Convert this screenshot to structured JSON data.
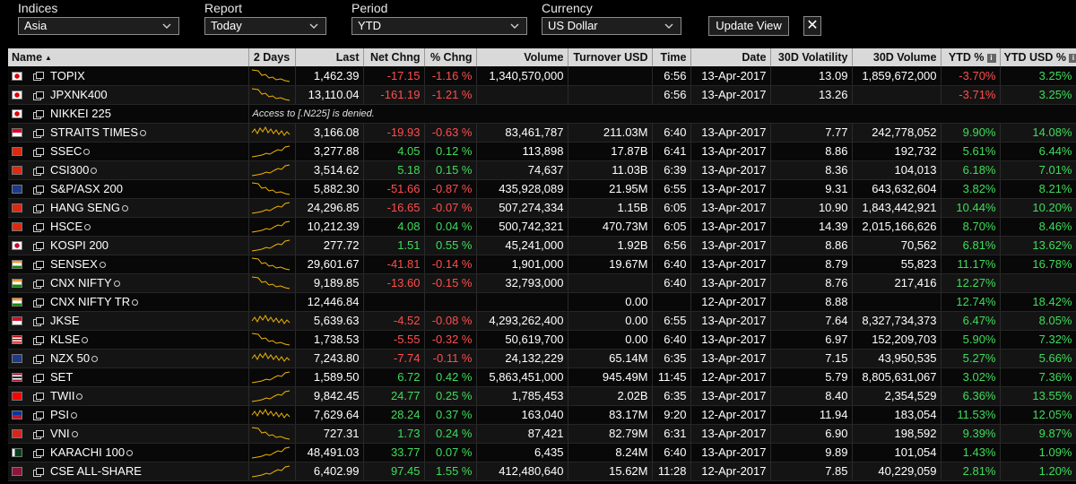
{
  "controls": {
    "indices": {
      "label": "Indices",
      "value": "Asia"
    },
    "report": {
      "label": "Report",
      "value": "Today"
    },
    "period": {
      "label": "Period",
      "value": "YTD"
    },
    "currency": {
      "label": "Currency",
      "value": "US Dollar"
    },
    "update_label": "Update View",
    "close_label": "✕"
  },
  "columns": {
    "name": "Name",
    "sort_indicator": "▲",
    "days": "2 Days",
    "last": "Last",
    "net": "Net Chng",
    "pct": "% Chng",
    "volume": "Volume",
    "turnover": "Turnover USD",
    "time": "Time",
    "date": "Date",
    "vol30": "30D Volatility",
    "volume30": "30D Volume",
    "ytd": "YTD %",
    "ytdusd": "YTD USD %",
    "info_glyph": "i"
  },
  "colors": {
    "negative": "#ff4d4d",
    "positive": "#3fdc5a",
    "sparkline": "#f0b400"
  },
  "rows": [
    {
      "flag": "japan",
      "name": "TOPIX",
      "clock": false,
      "last": "1,462.39",
      "net": "-17.15",
      "pct": "-1.16 %",
      "volume": "1,340,570,000",
      "turnover": "",
      "time": "6:56",
      "date": "13-Apr-2017",
      "vol30": "13.09",
      "volume30": "1,859,672,000",
      "ytd": "-3.70%",
      "ytdusd": "3.25%",
      "spark": "falling"
    },
    {
      "flag": "japan",
      "name": "JPXNK400",
      "clock": false,
      "last": "13,110.04",
      "net": "-161.19",
      "pct": "-1.21 %",
      "volume": "",
      "turnover": "",
      "time": "6:56",
      "date": "13-Apr-2017",
      "vol30": "13.26",
      "volume30": "",
      "ytd": "-3.71%",
      "ytdusd": "3.25%",
      "spark": "falling"
    },
    {
      "flag": "japan",
      "name": "NIKKEI 225",
      "clock": false,
      "denied": "Access to [.N225] is denied."
    },
    {
      "flag": "singapore",
      "name": "STRAITS TIMES",
      "clock": true,
      "last": "3,166.08",
      "net": "-19.93",
      "pct": "-0.63 %",
      "volume": "83,461,787",
      "turnover": "211.03M",
      "time": "6:40",
      "date": "13-Apr-2017",
      "vol30": "7.77",
      "volume30": "242,778,052",
      "ytd": "9.90%",
      "ytdusd": "14.08%",
      "spark": "choppy"
    },
    {
      "flag": "china",
      "name": "SSEC",
      "clock": true,
      "last": "3,277.88",
      "net": "4.05",
      "pct": "0.12 %",
      "volume": "113,898",
      "turnover": "17.87B",
      "time": "6:41",
      "date": "13-Apr-2017",
      "vol30": "8.86",
      "volume30": "192,732",
      "ytd": "5.61%",
      "ytdusd": "6.44%",
      "spark": "rising"
    },
    {
      "flag": "china",
      "name": "CSI300",
      "clock": true,
      "last": "3,514.62",
      "net": "5.18",
      "pct": "0.15 %",
      "volume": "74,637",
      "turnover": "11.03B",
      "time": "6:39",
      "date": "13-Apr-2017",
      "vol30": "8.36",
      "volume30": "104,013",
      "ytd": "6.18%",
      "ytdusd": "7.01%",
      "spark": "rising"
    },
    {
      "flag": "australia",
      "name": "S&P/ASX 200",
      "clock": false,
      "last": "5,882.30",
      "net": "-51.66",
      "pct": "-0.87 %",
      "volume": "435,928,089",
      "turnover": "21.95M",
      "time": "6:55",
      "date": "13-Apr-2017",
      "vol30": "9.31",
      "volume30": "643,632,604",
      "ytd": "3.82%",
      "ytdusd": "8.21%",
      "spark": "falling"
    },
    {
      "flag": "hongkong",
      "name": "HANG SENG",
      "clock": true,
      "last": "24,296.85",
      "net": "-16.65",
      "pct": "-0.07 %",
      "volume": "507,274,334",
      "turnover": "1.15B",
      "time": "6:05",
      "date": "13-Apr-2017",
      "vol30": "10.90",
      "volume30": "1,843,442,921",
      "ytd": "10.44%",
      "ytdusd": "10.20%",
      "spark": "rising"
    },
    {
      "flag": "hongkong",
      "name": "HSCE",
      "clock": true,
      "last": "10,212.39",
      "net": "4.08",
      "pct": "0.04 %",
      "volume": "500,742,321",
      "turnover": "470.73M",
      "time": "6:05",
      "date": "13-Apr-2017",
      "vol30": "14.39",
      "volume30": "2,015,166,626",
      "ytd": "8.70%",
      "ytdusd": "8.46%",
      "spark": "rising"
    },
    {
      "flag": "korea",
      "name": "KOSPI 200",
      "clock": false,
      "last": "277.72",
      "net": "1.51",
      "pct": "0.55 %",
      "volume": "45,241,000",
      "turnover": "1.92B",
      "time": "6:56",
      "date": "13-Apr-2017",
      "vol30": "8.86",
      "volume30": "70,562",
      "ytd": "6.81%",
      "ytdusd": "13.62%",
      "spark": "rising"
    },
    {
      "flag": "india",
      "name": "SENSEX",
      "clock": true,
      "last": "29,601.67",
      "net": "-41.81",
      "pct": "-0.14 %",
      "volume": "1,901,000",
      "turnover": "19.67M",
      "time": "6:40",
      "date": "13-Apr-2017",
      "vol30": "8.79",
      "volume30": "55,823",
      "ytd": "11.17%",
      "ytdusd": "16.78%",
      "spark": "falling"
    },
    {
      "flag": "india",
      "name": "CNX NIFTY",
      "clock": true,
      "last": "9,189.85",
      "net": "-13.60",
      "pct": "-0.15 %",
      "volume": "32,793,000",
      "turnover": "",
      "time": "6:40",
      "date": "13-Apr-2017",
      "vol30": "8.76",
      "volume30": "217,416",
      "ytd": "12.27%",
      "ytdusd": "",
      "spark": "falling"
    },
    {
      "flag": "india",
      "name": "CNX NIFTY TR",
      "clock": true,
      "last": "12,446.84",
      "net": "",
      "pct": "",
      "volume": "",
      "turnover": "0.00",
      "time": "",
      "date": "12-Apr-2017",
      "vol30": "8.88",
      "volume30": "",
      "ytd": "12.74%",
      "ytdusd": "18.42%",
      "spark": ""
    },
    {
      "flag": "indonesia",
      "name": "JKSE",
      "clock": false,
      "last": "5,639.63",
      "net": "-4.52",
      "pct": "-0.08 %",
      "volume": "4,293,262,400",
      "turnover": "0.00",
      "time": "6:55",
      "date": "13-Apr-2017",
      "vol30": "7.64",
      "volume30": "8,327,734,373",
      "ytd": "6.47%",
      "ytdusd": "8.05%",
      "spark": "choppy"
    },
    {
      "flag": "malaysia",
      "name": "KLSE",
      "clock": true,
      "last": "1,738.53",
      "net": "-5.55",
      "pct": "-0.32 %",
      "volume": "50,619,700",
      "turnover": "0.00",
      "time": "6:40",
      "date": "13-Apr-2017",
      "vol30": "6.97",
      "volume30": "152,209,703",
      "ytd": "5.90%",
      "ytdusd": "7.32%",
      "spark": "falling"
    },
    {
      "flag": "newzealand",
      "name": "NZX 50",
      "clock": true,
      "last": "7,243.80",
      "net": "-7.74",
      "pct": "-0.11 %",
      "volume": "24,132,229",
      "turnover": "65.14M",
      "time": "6:35",
      "date": "13-Apr-2017",
      "vol30": "7.15",
      "volume30": "43,950,535",
      "ytd": "5.27%",
      "ytdusd": "5.66%",
      "spark": "choppy"
    },
    {
      "flag": "thailand",
      "name": "SET",
      "clock": false,
      "last": "1,589.50",
      "net": "6.72",
      "pct": "0.42 %",
      "volume": "5,863,451,000",
      "turnover": "945.49M",
      "time": "11:45",
      "date": "12-Apr-2017",
      "vol30": "5.79",
      "volume30": "8,805,631,067",
      "ytd": "3.02%",
      "ytdusd": "7.36%",
      "spark": "rising"
    },
    {
      "flag": "taiwan",
      "name": "TWII",
      "clock": true,
      "last": "9,842.45",
      "net": "24.77",
      "pct": "0.25 %",
      "volume": "1,785,453",
      "turnover": "2.02B",
      "time": "6:35",
      "date": "13-Apr-2017",
      "vol30": "8.40",
      "volume30": "2,354,529",
      "ytd": "6.36%",
      "ytdusd": "13.55%",
      "spark": "rising"
    },
    {
      "flag": "philippines",
      "name": "PSI",
      "clock": true,
      "last": "7,629.64",
      "net": "28.24",
      "pct": "0.37 %",
      "volume": "163,040",
      "turnover": "83.17M",
      "time": "9:20",
      "date": "12-Apr-2017",
      "vol30": "11.94",
      "volume30": "183,054",
      "ytd": "11.53%",
      "ytdusd": "12.05%",
      "spark": "choppy"
    },
    {
      "flag": "vietnam",
      "name": "VNI",
      "clock": true,
      "last": "727.31",
      "net": "1.73",
      "pct": "0.24 %",
      "volume": "87,421",
      "turnover": "82.79M",
      "time": "6:31",
      "date": "13-Apr-2017",
      "vol30": "6.90",
      "volume30": "198,592",
      "ytd": "9.39%",
      "ytdusd": "9.87%",
      "spark": "falling"
    },
    {
      "flag": "pakistan",
      "name": "KARACHI 100",
      "clock": true,
      "last": "48,491.03",
      "net": "33.77",
      "pct": "0.07 %",
      "volume": "6,435",
      "turnover": "8.24M",
      "time": "6:40",
      "date": "13-Apr-2017",
      "vol30": "9.89",
      "volume30": "101,054",
      "ytd": "1.43%",
      "ytdusd": "1.09%",
      "spark": "rising"
    },
    {
      "flag": "srilanka",
      "name": "CSE ALL-SHARE",
      "clock": false,
      "last": "6,402.99",
      "net": "97.45",
      "pct": "1.55 %",
      "volume": "412,480,640",
      "turnover": "15.62M",
      "time": "11:28",
      "date": "12-Apr-2017",
      "vol30": "7.85",
      "volume30": "40,229,059",
      "ytd": "2.81%",
      "ytdusd": "1.20%",
      "spark": "rising"
    }
  ]
}
